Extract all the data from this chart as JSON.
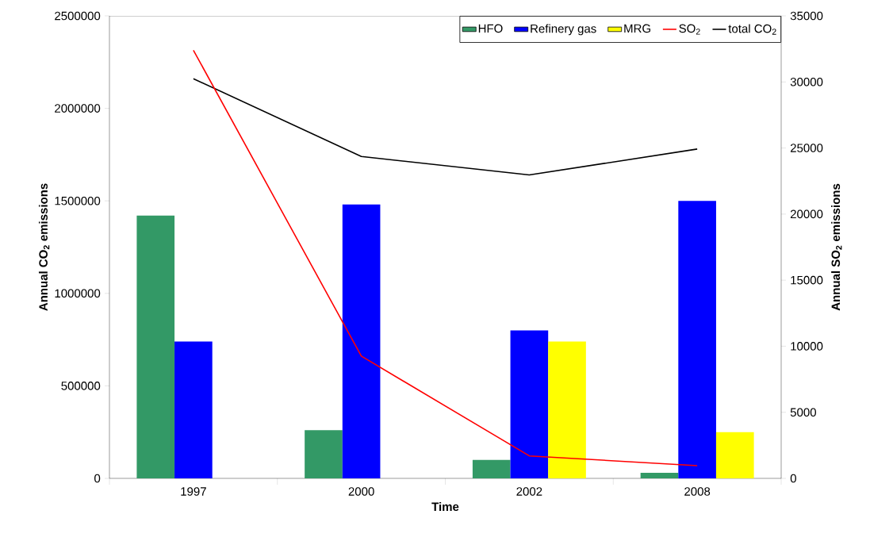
{
  "chart_data": {
    "type": "bar",
    "categories": [
      "1997",
      "2000",
      "2002",
      "2008"
    ],
    "xlabel": "Time",
    "ylabel": "Annual CO$_{2}$ emissions",
    "y2label": "Annual SO$_{2}$ emissions",
    "series": [
      {
        "name": "HFO",
        "color": "#339966",
        "values": [
          1420000,
          260000,
          100000,
          30000
        ]
      },
      {
        "name": "Refinery gas",
        "color": "#0000ff",
        "values": [
          740000,
          1480000,
          800000,
          1500000
        ]
      },
      {
        "name": "MRG",
        "color": "#ffff00",
        "values": [
          null,
          null,
          740000,
          250000
        ]
      },
      {
        "name": "SO$_{2}$",
        "type": "line",
        "axis": "y2",
        "color": "#ff0000",
        "values": [
          32400,
          9250,
          1700,
          960
        ]
      },
      {
        "name": "total CO$_{2}$",
        "type": "line",
        "color": "#000000",
        "values": [
          2160000,
          1740000,
          1640000,
          1780000
        ]
      }
    ],
    "ylim": [
      0,
      2500000
    ],
    "yticks": [
      0,
      500000,
      1000000,
      1500000,
      2000000,
      2500000
    ],
    "y2lim": [
      0,
      35000
    ],
    "y2ticks": [
      0,
      5000,
      10000,
      15000,
      20000,
      25000,
      30000,
      35000
    ],
    "legend": "top right"
  }
}
